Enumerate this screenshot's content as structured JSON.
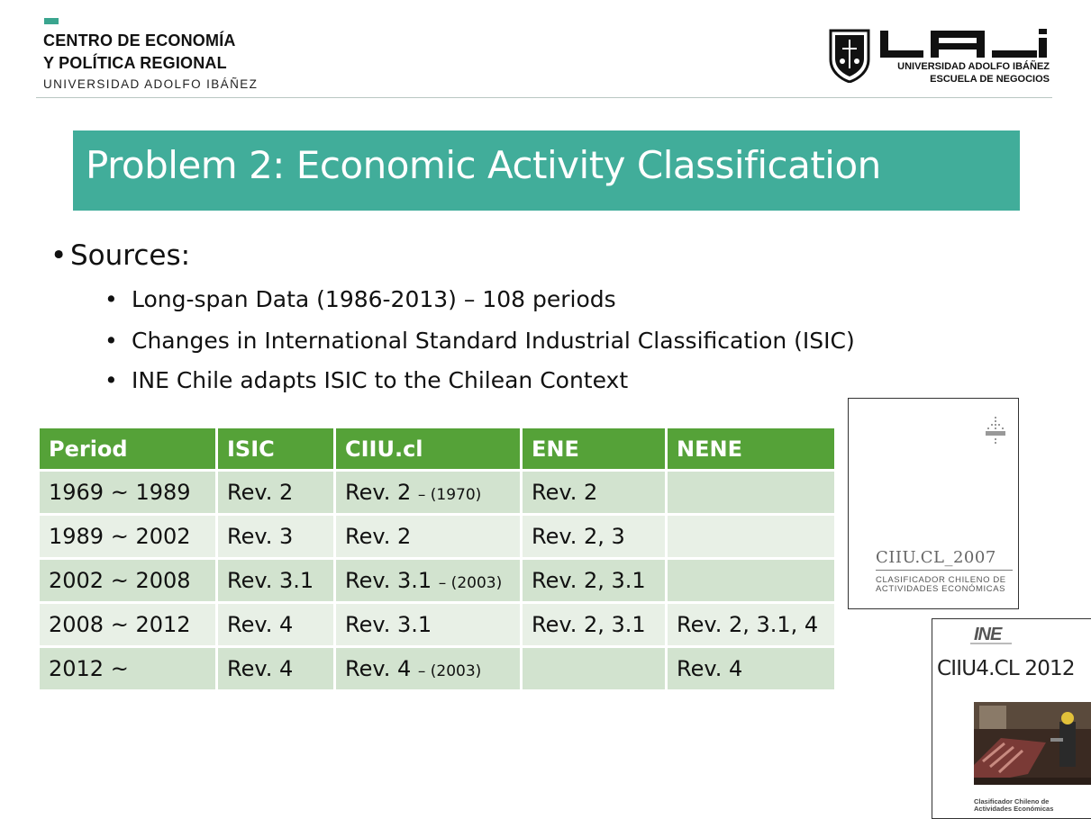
{
  "header": {
    "org_line1": "CENTRO DE ECONOMÍA",
    "org_line2": "Y POLÍTICA REGIONAL",
    "org_line3": "UNIVERSIDAD ADOLFO IBÁÑEZ",
    "uai_line1": "UNIVERSIDAD ADOLFO IBÁÑEZ",
    "uai_line2": "ESCUELA DE NEGOCIOS"
  },
  "title": "Problem 2: Economic Activity Classification",
  "bullets": {
    "main": "Sources:",
    "sub": [
      "Long-span Data (1986-2013) – 108 periods",
      "Changes in International Standard Industrial Classification (ISIC)",
      "INE Chile adapts ISIC to the Chilean Context"
    ]
  },
  "table": {
    "headers": [
      "Period",
      "ISIC",
      "CIIU.cl",
      "ENE",
      "NENE"
    ],
    "rows": [
      {
        "period": "1969 ~ 1989",
        "isic": "Rev. 2",
        "ciiu": "Rev. 2",
        "ciiu_note": "– (1970)",
        "ene": "Rev. 2",
        "nene": ""
      },
      {
        "period": "1989 ~ 2002",
        "isic": "Rev. 3",
        "ciiu": "Rev. 2",
        "ciiu_note": "",
        "ene": "Rev. 2, 3",
        "nene": ""
      },
      {
        "period": "2002 ~ 2008",
        "isic": "Rev. 3.1",
        "ciiu": "Rev. 3.1",
        "ciiu_note": "– (2003)",
        "ene": "Rev. 2, 3.1",
        "nene": ""
      },
      {
        "period": "2008 ~ 2012",
        "isic": "Rev. 4",
        "ciiu": "Rev. 3.1",
        "ciiu_note": "",
        "ene": "Rev. 2, 3.1",
        "nene": "Rev. 2, 3.1, 4"
      },
      {
        "period": "2012 ~",
        "isic": "Rev. 4",
        "ciiu": "Rev. 4",
        "ciiu_note": "– (2003)",
        "ene": "",
        "nene": "Rev. 4"
      }
    ]
  },
  "covers": {
    "cover1_title": "CIIU.CL_2007",
    "cover1_sub1": "CLASIFICADOR CHILENO DE",
    "cover1_sub2": "ACTIVIDADES ECONÓMICAS",
    "cover2_logo": "INE",
    "cover2_title": "CIIU4.CL 2012",
    "cover2_sub1": "Clasificador Chileno de",
    "cover2_sub2": "Actividades Económicas"
  },
  "colors": {
    "title_bar": "#41ad9a",
    "table_header": "#55a238",
    "row_odd": "#d2e3cf",
    "row_even": "#e8f0e6"
  }
}
